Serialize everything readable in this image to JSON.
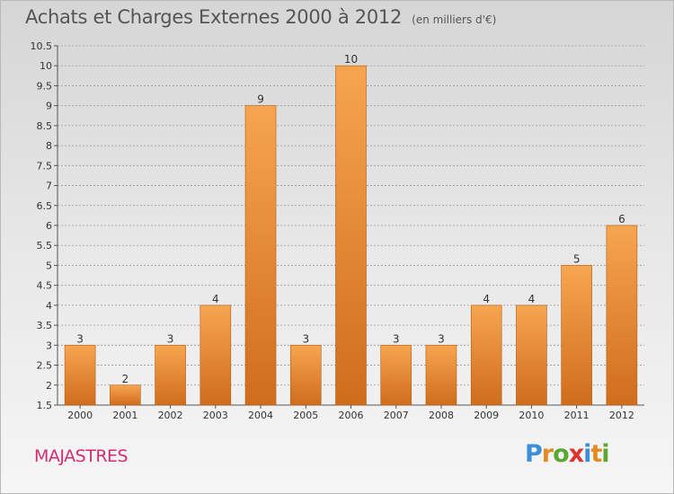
{
  "title": "Achats et Charges Externes 2000 à 2012",
  "subtitle": "(en milliers d'€)",
  "commune": "MAJASTRES",
  "logo_text": "Proxiti",
  "colors": {
    "bar_top": "#f7a550",
    "bar_bottom": "#cf6d1c",
    "commune": "#d42d73",
    "grid": "#9a9a9a"
  },
  "chart_data": {
    "type": "bar",
    "title": "Achats et Charges Externes 2000 à 2012",
    "subtitle": "(en milliers d'€)",
    "categories": [
      "2000",
      "2001",
      "2002",
      "2003",
      "2004",
      "2005",
      "2006",
      "2007",
      "2008",
      "2009",
      "2010",
      "2011",
      "2012"
    ],
    "values": [
      3,
      2,
      3,
      4,
      9,
      3,
      10,
      3,
      3,
      4,
      4,
      5,
      6
    ],
    "data_labels": [
      "3",
      "2",
      "3",
      "4",
      "9",
      "3",
      "10",
      "3",
      "3",
      "4",
      "4",
      "5",
      "6"
    ],
    "ylim": [
      1.5,
      10.5
    ],
    "yticks": [
      "1.5",
      "2",
      "2.5",
      "3",
      "3.5",
      "4",
      "4.5",
      "5",
      "5.5",
      "6",
      "6.5",
      "7",
      "7.5",
      "8",
      "8.5",
      "9",
      "9.5",
      "10",
      "10.5"
    ],
    "grid": true,
    "xlabel": "",
    "ylabel": ""
  }
}
